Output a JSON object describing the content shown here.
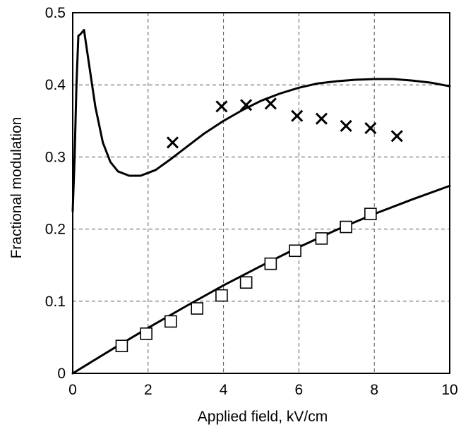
{
  "chart_data": {
    "type": "scatter",
    "title": "",
    "xlabel": "Applied field, kV/cm",
    "ylabel": "Fractional modulation",
    "xlim": [
      0,
      10
    ],
    "ylim": [
      0,
      0.5
    ],
    "grid": true,
    "grid_style": "dashed",
    "x_ticks": [
      "0",
      "2",
      "4",
      "6",
      "8",
      "10"
    ],
    "y_ticks": [
      "0",
      "0.1",
      "0.2",
      "0.3",
      "0.4",
      "0.5"
    ],
    "colors": {
      "ink": "#000000",
      "grid": "#555555",
      "background": "#ffffff"
    },
    "series": [
      {
        "kind": "line",
        "marker": "none",
        "x": [
          0.0,
          0.05,
          0.1,
          0.15,
          0.2,
          0.3,
          0.4,
          0.6,
          0.8,
          1.0,
          1.2,
          1.5,
          1.8,
          2.2,
          2.6,
          3.0,
          3.5,
          4.0,
          4.5,
          5.0,
          5.5,
          6.0,
          6.5,
          7.0,
          7.5,
          8.0,
          8.5,
          9.0,
          9.5,
          10.0
        ],
        "y": [
          0.225,
          0.3,
          0.4,
          0.468,
          0.47,
          0.476,
          0.44,
          0.37,
          0.32,
          0.293,
          0.28,
          0.274,
          0.274,
          0.282,
          0.297,
          0.313,
          0.333,
          0.35,
          0.365,
          0.378,
          0.388,
          0.396,
          0.402,
          0.405,
          0.407,
          0.408,
          0.408,
          0.406,
          0.403,
          0.398
        ]
      },
      {
        "kind": "scatter",
        "marker": "x",
        "x": [
          2.65,
          3.95,
          4.6,
          5.25,
          5.95,
          6.6,
          7.25,
          7.9,
          8.6
        ],
        "y": [
          0.32,
          0.37,
          0.372,
          0.374,
          0.357,
          0.353,
          0.343,
          0.34,
          0.329
        ]
      },
      {
        "kind": "line",
        "marker": "none",
        "x": [
          0,
          1,
          2,
          3,
          4,
          5,
          6,
          7,
          8,
          9,
          10
        ],
        "y": [
          0,
          0.032,
          0.063,
          0.093,
          0.122,
          0.149,
          0.175,
          0.199,
          0.221,
          0.241,
          0.26
        ]
      },
      {
        "kind": "scatter",
        "marker": "square",
        "x": [
          1.3,
          1.95,
          2.6,
          3.3,
          3.95,
          4.6,
          5.25,
          5.9,
          6.6,
          7.25,
          7.9
        ],
        "y": [
          0.038,
          0.055,
          0.072,
          0.09,
          0.108,
          0.126,
          0.152,
          0.17,
          0.187,
          0.203,
          0.221
        ]
      }
    ]
  }
}
